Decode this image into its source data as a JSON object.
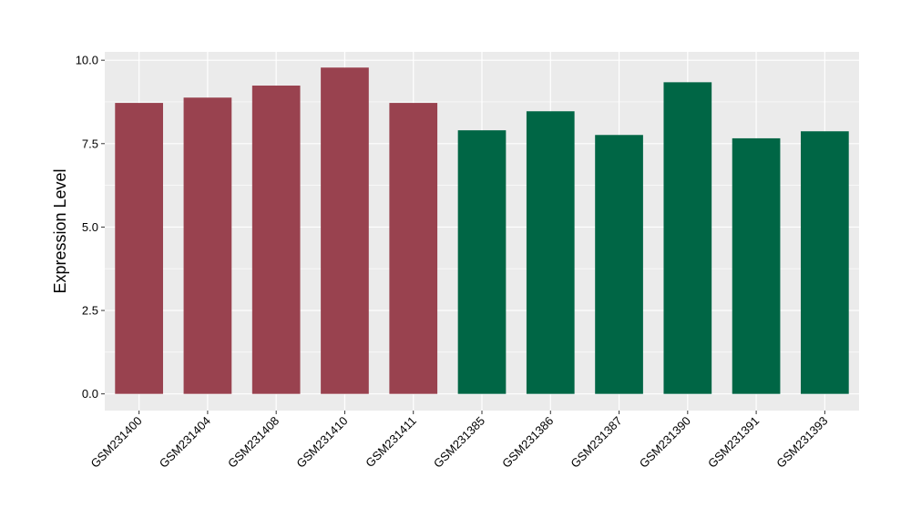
{
  "chart_data": {
    "type": "bar",
    "title": "",
    "xlabel": "",
    "ylabel": "Expression Level",
    "categories": [
      "GSM231400",
      "GSM231404",
      "GSM231408",
      "GSM231410",
      "GSM231411",
      "GSM231385",
      "GSM231386",
      "GSM231387",
      "GSM231390",
      "GSM231391",
      "GSM231393"
    ],
    "values": [
      8.72,
      8.88,
      9.24,
      9.78,
      8.72,
      7.9,
      8.47,
      7.76,
      9.34,
      7.66,
      7.87
    ],
    "bar_colors": [
      "#99424f",
      "#99424f",
      "#99424f",
      "#99424f",
      "#99424f",
      "#006645",
      "#006645",
      "#006645",
      "#006645",
      "#006645",
      "#006645"
    ],
    "ylim": [
      -0.5,
      10.25
    ],
    "yticks": [
      0.0,
      2.5,
      5.0,
      7.5,
      10.0
    ],
    "ytick_labels": [
      "0.0",
      "2.5",
      "5.0",
      "7.5",
      "10.0"
    ],
    "grid": true,
    "legend": "none",
    "colors": {
      "panel_background": "#ebebeb",
      "grid": "#ffffff"
    }
  }
}
